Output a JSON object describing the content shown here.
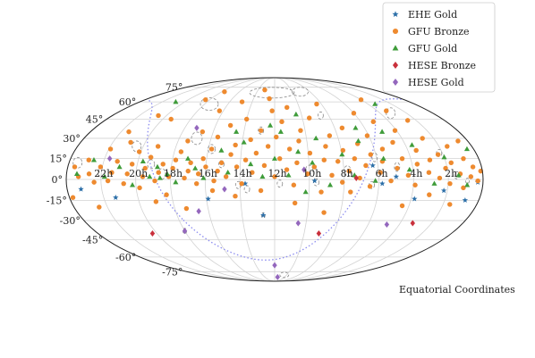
{
  "chart_data": {
    "type": "scatter",
    "projection": "mollweide",
    "annotation": "Equatorial Coordinates",
    "dec_tick_labels": [
      "75°",
      "60°",
      "45°",
      "30°",
      "15°",
      "0°",
      "-15°",
      "-30°",
      "-45°",
      "-60°",
      "-75°"
    ],
    "ra_tick_labels": [
      "22h",
      "20h",
      "18h",
      "16h",
      "14h",
      "12h",
      "10h",
      "8h",
      "6h",
      "4h",
      "2h"
    ],
    "ra_tick_values_hours": [
      22,
      20,
      18,
      16,
      14,
      12,
      10,
      8,
      6,
      4,
      2
    ],
    "grid": true,
    "galactic_plane": {
      "shown": true,
      "style": "dotted",
      "color": "#8b8bef"
    },
    "error_contours": {
      "shown": true,
      "style": "dashed",
      "color": "#888888"
    },
    "legend_position": "top-right",
    "series": [
      {
        "name": "EHE Gold",
        "marker": "star",
        "color": "#2c6fa8",
        "points": [
          [
            23.2,
            -7
          ],
          [
            21.3,
            -13
          ],
          [
            15.9,
            -14
          ],
          [
            13.7,
            -3
          ],
          [
            12.7,
            -26
          ],
          [
            9.7,
            -1
          ],
          [
            6.3,
            10
          ],
          [
            5.8,
            -3
          ],
          [
            5.0,
            2
          ],
          [
            3.8,
            -14
          ],
          [
            2.2,
            -8
          ],
          [
            0.8,
            -15
          ],
          [
            0.3,
            -2
          ]
        ]
      },
      {
        "name": "GFU Bronze",
        "marker": "circle",
        "color": "#ee8a2f",
        "points": [
          [
            23.6,
            9
          ],
          [
            23.3,
            2
          ],
          [
            22.9,
            14
          ],
          [
            22.7,
            4
          ],
          [
            22.4,
            -2
          ],
          [
            22.1,
            9
          ],
          [
            21.9,
            22
          ],
          [
            21.6,
            -1
          ],
          [
            21.4,
            5
          ],
          [
            21.2,
            13
          ],
          [
            20.9,
            27
          ],
          [
            20.7,
            -3
          ],
          [
            20.5,
            4
          ],
          [
            20.3,
            11
          ],
          [
            20.1,
            20
          ],
          [
            19.8,
            -6
          ],
          [
            19.6,
            2
          ],
          [
            19.5,
            8
          ],
          [
            19.3,
            16
          ],
          [
            19.1,
            24
          ],
          [
            18.9,
            -1
          ],
          [
            18.7,
            5
          ],
          [
            18.5,
            11
          ],
          [
            18.3,
            -11
          ],
          [
            18.1,
            2
          ],
          [
            17.9,
            8
          ],
          [
            17.8,
            14
          ],
          [
            17.6,
            20
          ],
          [
            17.4,
            28
          ],
          [
            17.2,
            1
          ],
          [
            17.0,
            6
          ],
          [
            16.9,
            12
          ],
          [
            16.7,
            35
          ],
          [
            16.5,
            -3
          ],
          [
            16.4,
            4
          ],
          [
            16.2,
            15
          ],
          [
            16.0,
            9
          ],
          [
            15.8,
            22
          ],
          [
            15.6,
            31
          ],
          [
            15.5,
            -1
          ],
          [
            15.3,
            6
          ],
          [
            15.1,
            12
          ],
          [
            15.0,
            40
          ],
          [
            14.8,
            2
          ],
          [
            14.6,
            18
          ],
          [
            14.4,
            25
          ],
          [
            14.2,
            9
          ],
          [
            14.0,
            45
          ],
          [
            13.9,
            -3
          ],
          [
            13.7,
            14
          ],
          [
            13.5,
            29
          ],
          [
            13.3,
            5
          ],
          [
            13.1,
            19
          ],
          [
            12.9,
            36
          ],
          [
            12.8,
            -8
          ],
          [
            12.6,
            10
          ],
          [
            12.4,
            24
          ],
          [
            12.2,
            52
          ],
          [
            12.0,
            2
          ],
          [
            11.9,
            31
          ],
          [
            11.7,
            15
          ],
          [
            11.5,
            43
          ],
          [
            11.3,
            7
          ],
          [
            11.1,
            22
          ],
          [
            10.9,
            -4
          ],
          [
            10.7,
            12
          ],
          [
            10.5,
            28
          ],
          [
            10.3,
            36
          ],
          [
            10.1,
            4
          ],
          [
            9.9,
            19
          ],
          [
            9.7,
            9
          ],
          [
            9.5,
            46
          ],
          [
            9.3,
            -9
          ],
          [
            9.1,
            14
          ],
          [
            8.9,
            24
          ],
          [
            8.7,
            3
          ],
          [
            8.5,
            32
          ],
          [
            8.3,
            13
          ],
          [
            8.1,
            -2
          ],
          [
            7.9,
            21
          ],
          [
            7.7,
            6
          ],
          [
            7.5,
            38
          ],
          [
            7.3,
            15
          ],
          [
            7.1,
            1
          ],
          [
            6.9,
            26
          ],
          [
            6.7,
            10
          ],
          [
            6.5,
            -5
          ],
          [
            6.3,
            18
          ],
          [
            6.1,
            32
          ],
          [
            5.9,
            5
          ],
          [
            5.7,
            13
          ],
          [
            5.5,
            22
          ],
          [
            5.3,
            -1
          ],
          [
            5.1,
            43
          ],
          [
            4.9,
            8
          ],
          [
            4.7,
            27
          ],
          [
            4.5,
            15
          ],
          [
            4.3,
            3
          ],
          [
            4.1,
            36
          ],
          [
            3.9,
            -4
          ],
          [
            3.7,
            11
          ],
          [
            3.5,
            21
          ],
          [
            3.3,
            52
          ],
          [
            3.1,
            5
          ],
          [
            2.9,
            14
          ],
          [
            2.7,
            30
          ],
          [
            2.5,
            1
          ],
          [
            2.3,
            18
          ],
          [
            2.1,
            8
          ],
          [
            1.9,
            -3
          ],
          [
            1.7,
            12
          ],
          [
            1.5,
            24
          ],
          [
            1.3,
            4
          ],
          [
            1.1,
            -6
          ],
          [
            0.9,
            15
          ],
          [
            0.7,
            2
          ],
          [
            0.5,
            9
          ],
          [
            0.3,
            -1
          ],
          [
            0.1,
            6
          ],
          [
            22.5,
            -20
          ],
          [
            19.0,
            -16
          ],
          [
            17.3,
            -21
          ],
          [
            15.6,
            -8
          ],
          [
            14.3,
            -12
          ],
          [
            10.8,
            -17
          ],
          [
            9.0,
            -24
          ],
          [
            7.6,
            -9
          ],
          [
            4.4,
            -19
          ],
          [
            3.0,
            -11
          ],
          [
            1.6,
            -18
          ],
          [
            23.8,
            -13
          ],
          [
            19.4,
            45
          ],
          [
            16.3,
            52
          ],
          [
            14.9,
            60
          ],
          [
            12.5,
            63
          ],
          [
            11.0,
            55
          ],
          [
            8.4,
            58
          ],
          [
            6.0,
            50
          ],
          [
            4.0,
            62
          ],
          [
            2.6,
            44
          ],
          [
            0.6,
            28
          ],
          [
            21.5,
            35
          ],
          [
            20.6,
            48
          ],
          [
            18.4,
            62
          ],
          [
            17.7,
            70
          ],
          [
            13.2,
            72
          ]
        ]
      },
      {
        "name": "GFU Gold",
        "marker": "triangle",
        "color": "#3f9c3a",
        "points": [
          [
            23.4,
            4
          ],
          [
            22.6,
            14
          ],
          [
            21.8,
            2
          ],
          [
            21.0,
            9
          ],
          [
            20.2,
            -4
          ],
          [
            19.7,
            13
          ],
          [
            19.2,
            2
          ],
          [
            18.8,
            9
          ],
          [
            18.6,
            1
          ],
          [
            18.2,
            4
          ],
          [
            17.7,
            -2
          ],
          [
            17.1,
            15
          ],
          [
            16.6,
            8
          ],
          [
            16.1,
            1
          ],
          [
            15.2,
            21
          ],
          [
            14.7,
            5
          ],
          [
            13.9,
            27
          ],
          [
            13.4,
            11
          ],
          [
            12.7,
            2
          ],
          [
            12.0,
            15
          ],
          [
            11.6,
            35
          ],
          [
            11.2,
            3
          ],
          [
            10.6,
            20
          ],
          [
            10.2,
            -9
          ],
          [
            9.8,
            12
          ],
          [
            9.4,
            30
          ],
          [
            8.8,
            -4
          ],
          [
            8.0,
            18
          ],
          [
            7.4,
            3
          ],
          [
            6.8,
            28
          ],
          [
            6.2,
            -1
          ],
          [
            5.6,
            15
          ],
          [
            5.0,
            35
          ],
          [
            4.2,
            7
          ],
          [
            3.6,
            25
          ],
          [
            2.8,
            -3
          ],
          [
            2.0,
            16
          ],
          [
            1.4,
            3
          ],
          [
            0.4,
            22
          ],
          [
            0.9,
            -4
          ],
          [
            6.6,
            38
          ],
          [
            10.4,
            49
          ],
          [
            12.3,
            40
          ],
          [
            14.5,
            35
          ],
          [
            20.8,
            60
          ],
          [
            3.4,
            58
          ]
        ]
      },
      {
        "name": "HESE Bronze",
        "marker": "diamond",
        "color": "#c9303c",
        "points": [
          [
            20.3,
            -40
          ],
          [
            9.0,
            -40
          ],
          [
            3.2,
            -32
          ],
          [
            7.3,
            1
          ]
        ]
      },
      {
        "name": "HESE Gold",
        "marker": "diamond",
        "color": "#9467bd",
        "points": [
          [
            18.0,
            -38
          ],
          [
            12.0,
            -68
          ],
          [
            11.4,
            -82
          ],
          [
            10.5,
            -32
          ],
          [
            4.8,
            -33
          ],
          [
            14.9,
            -7
          ],
          [
            16.6,
            -23
          ],
          [
            21.7,
            15
          ],
          [
            10.3,
            7
          ],
          [
            17.2,
            38
          ]
        ]
      }
    ],
    "contours": [
      [
        23.5,
        12,
        5,
        6
      ],
      [
        22.0,
        5,
        4,
        5
      ],
      [
        20.4,
        24,
        5,
        6
      ],
      [
        19.2,
        11,
        4,
        5
      ],
      [
        18.5,
        4,
        4,
        6
      ],
      [
        17.6,
        58,
        10,
        7
      ],
      [
        16.9,
        30,
        6,
        7
      ],
      [
        15.8,
        22,
        4,
        5
      ],
      [
        14.1,
        -4,
        3,
        4
      ],
      [
        12.9,
        36,
        3,
        4
      ],
      [
        12.7,
        -26,
        2,
        3
      ],
      [
        11.7,
        -3,
        3,
        4
      ],
      [
        10.0,
        7,
        4,
        5
      ],
      [
        9.6,
        -2,
        3,
        4
      ],
      [
        8.6,
        48,
        3,
        4
      ],
      [
        7.8,
        6,
        4,
        6
      ],
      [
        6.4,
        -4,
        3,
        4
      ],
      [
        4.9,
        9,
        3,
        5
      ],
      [
        3.2,
        50,
        5,
        6
      ],
      [
        2.2,
        19,
        3,
        4
      ],
      [
        1.5,
        3,
        3,
        4
      ],
      [
        0.9,
        -1,
        2,
        3
      ],
      [
        12.3,
        69,
        25,
        6
      ],
      [
        9.1,
        70,
        9,
        5
      ],
      [
        10.4,
        -79,
        5,
        3
      ],
      [
        18.0,
        -38,
        2,
        3
      ],
      [
        6.1,
        16,
        3,
        5
      ],
      [
        15.1,
        11,
        3,
        4
      ],
      [
        13.6,
        -7,
        3,
        4
      ]
    ]
  },
  "legend": {
    "items": [
      {
        "label": "EHE Gold",
        "marker": "star",
        "color": "#2c6fa8"
      },
      {
        "label": "GFU Bronze",
        "marker": "circle",
        "color": "#ee8a2f"
      },
      {
        "label": "GFU Gold",
        "marker": "triangle",
        "color": "#3f9c3a"
      },
      {
        "label": "HESE Bronze",
        "marker": "diamond",
        "color": "#c9303c"
      },
      {
        "label": "HESE Gold",
        "marker": "diamond",
        "color": "#9467bd"
      }
    ]
  }
}
